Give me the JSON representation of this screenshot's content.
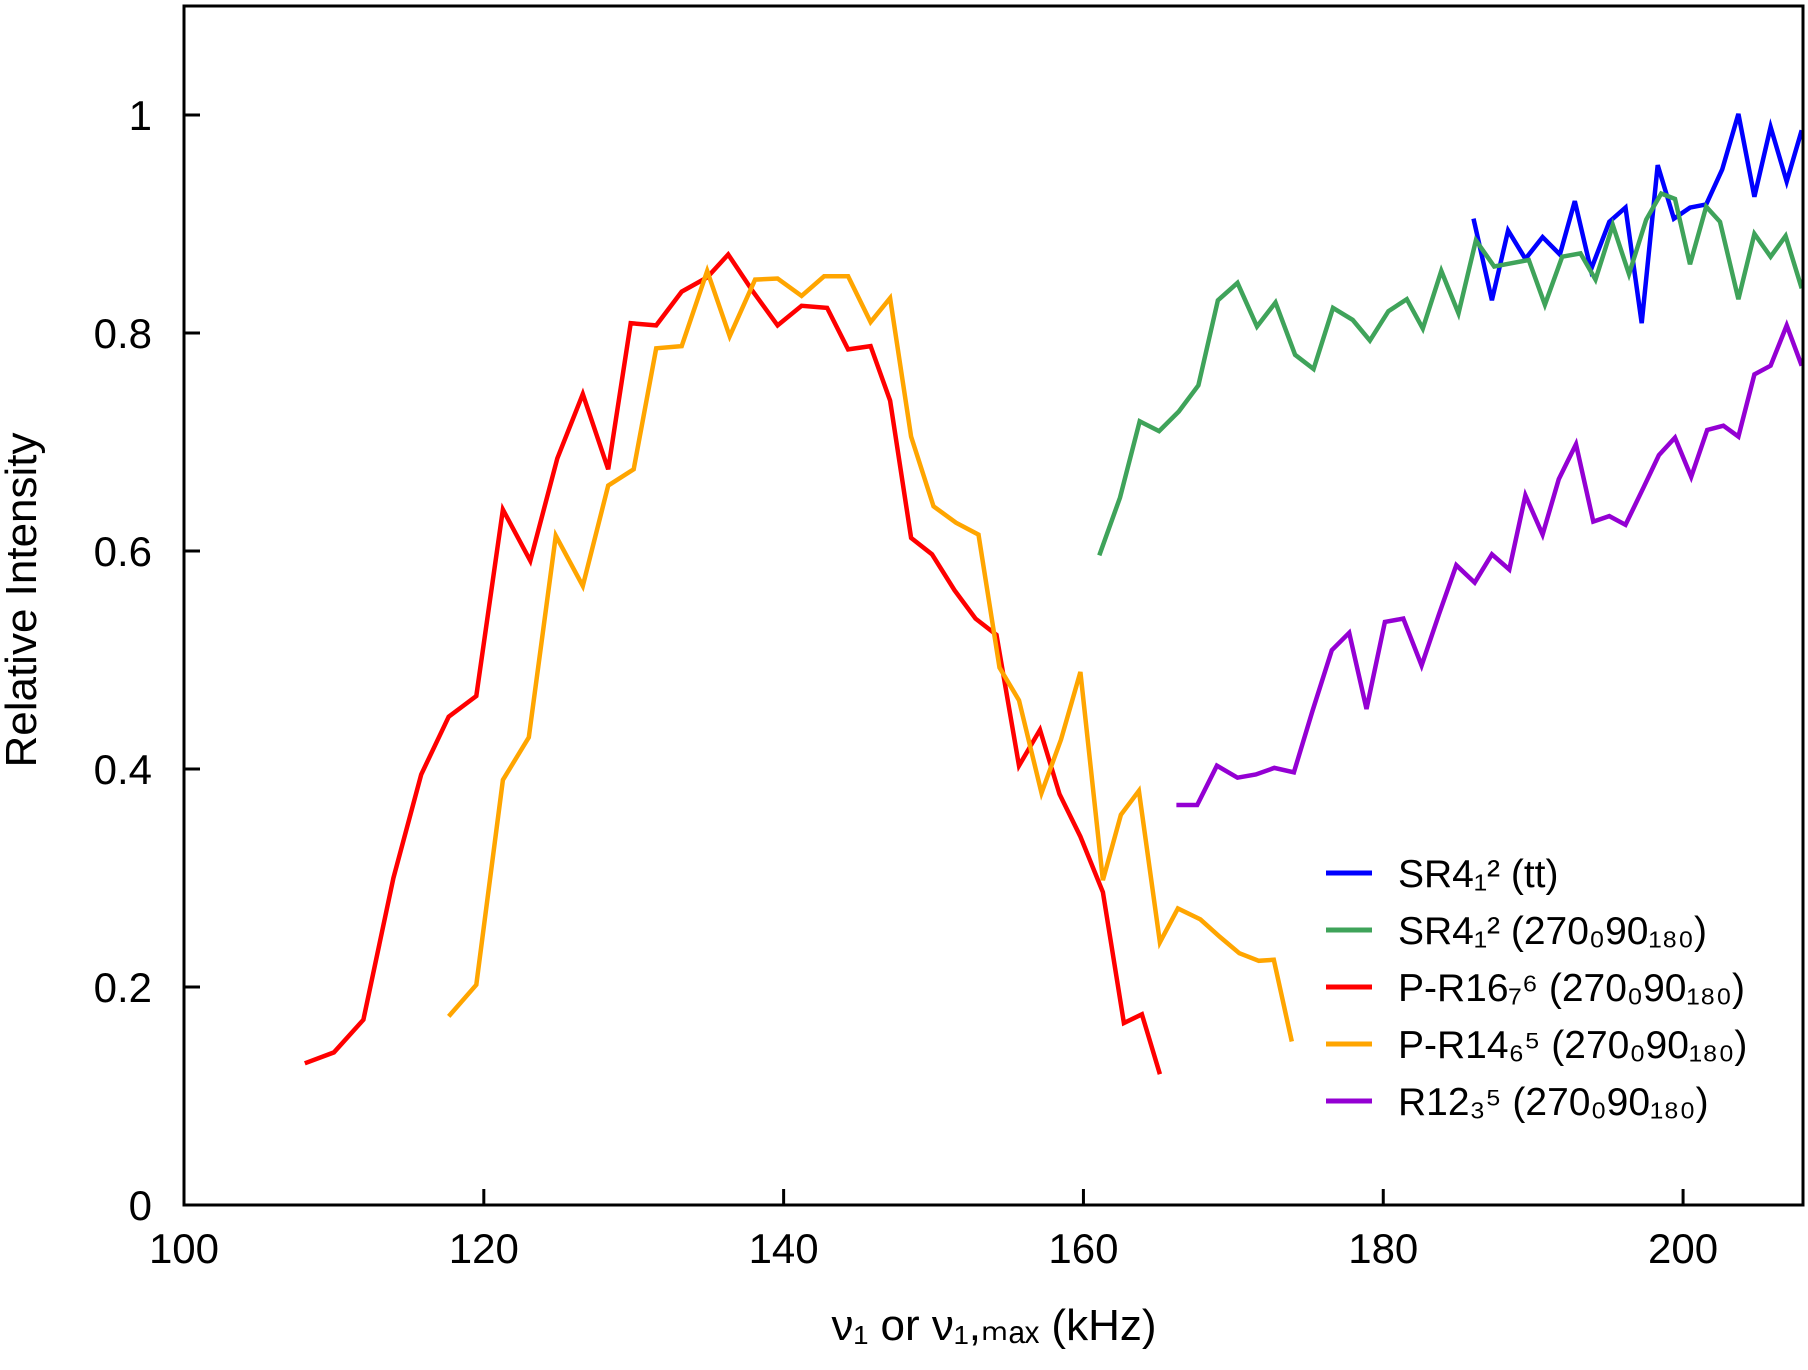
{
  "chart_data": {
    "type": "line",
    "xlabel": "ν₁ or ν₁,ₘₐₓ (kHz)",
    "ylabel": "Relative Intensity",
    "xlim": [
      100,
      208
    ],
    "ylim": [
      0,
      1.1
    ],
    "xticks": [
      100,
      120,
      140,
      160,
      180,
      200
    ],
    "yticks": [
      0,
      0.2,
      0.4,
      0.6,
      0.8,
      1
    ],
    "grid": false,
    "legend_position": "lower right",
    "series": [
      {
        "name": "SR4₁² (tt)",
        "color": "#0000ff",
        "x": [
          186.02,
          187.25,
          188.33,
          189.48,
          190.63,
          191.78,
          192.78,
          193.85,
          195.08,
          196.16,
          197.24,
          198.31,
          199.39,
          200.46,
          201.54,
          202.61,
          203.69,
          204.76,
          205.84,
          206.91,
          207.91
        ],
        "values": [
          0.905,
          0.83,
          0.894,
          0.868,
          0.888,
          0.872,
          0.921,
          0.858,
          0.902,
          0.915,
          0.809,
          0.954,
          0.905,
          0.915,
          0.918,
          0.95,
          1.001,
          0.925,
          0.989,
          0.939,
          0.986
        ]
      },
      {
        "name": "SR4₁² (270₀90₁₈₀)",
        "color": "#3fa35a",
        "x": [
          161.06,
          162.44,
          163.75,
          165.05,
          166.36,
          167.67,
          168.97,
          170.28,
          171.58,
          172.81,
          174.12,
          175.35,
          176.65,
          177.96,
          179.11,
          180.34,
          181.57,
          182.64,
          183.87,
          185.02,
          186.18,
          187.4,
          188.56,
          189.71,
          190.78,
          191.94,
          193.16,
          194.16,
          195.31,
          196.39,
          197.54,
          198.54,
          199.46,
          200.46,
          201.54,
          202.46,
          203.69,
          204.76,
          205.84,
          206.84,
          207.91
        ],
        "values": [
          0.596,
          0.649,
          0.719,
          0.71,
          0.728,
          0.752,
          0.83,
          0.846,
          0.806,
          0.828,
          0.78,
          0.767,
          0.823,
          0.812,
          0.793,
          0.82,
          0.831,
          0.804,
          0.857,
          0.818,
          0.885,
          0.861,
          0.864,
          0.867,
          0.826,
          0.87,
          0.873,
          0.849,
          0.899,
          0.854,
          0.904,
          0.928,
          0.923,
          0.863,
          0.916,
          0.902,
          0.831,
          0.891,
          0.87,
          0.889,
          0.841
        ]
      },
      {
        "name": "P-R16₇⁶ (270₀90₁₈₀)",
        "color": "#ff0000",
        "x": [
          108.06,
          110.0,
          111.97,
          113.97,
          115.82,
          117.66,
          119.5,
          121.27,
          123.1,
          124.9,
          126.6,
          128.3,
          129.8,
          131.5,
          133.2,
          134.9,
          136.3,
          137.96,
          139.6,
          141.2,
          142.9,
          144.3,
          145.8,
          147.1,
          148.5,
          149.9,
          151.4,
          152.8,
          154.2,
          155.7,
          157.1,
          158.4,
          159.8,
          161.3,
          162.7,
          163.9,
          165.1
        ],
        "values": [
          0.13,
          0.14,
          0.17,
          0.3,
          0.395,
          0.448,
          0.467,
          0.638,
          0.591,
          0.685,
          0.744,
          0.675,
          0.809,
          0.807,
          0.838,
          0.851,
          0.872,
          0.838,
          0.807,
          0.825,
          0.823,
          0.785,
          0.788,
          0.738,
          0.612,
          0.597,
          0.564,
          0.538,
          0.523,
          0.403,
          0.436,
          0.377,
          0.338,
          0.287,
          0.167,
          0.175,
          0.12
        ]
      },
      {
        "name": "P-R14₆⁵ (270₀90₁₈₀)",
        "color": "#ffa500",
        "x": [
          117.66,
          119.5,
          121.27,
          123.0,
          124.8,
          126.6,
          128.3,
          130.0,
          131.5,
          133.2,
          134.9,
          136.4,
          138.1,
          139.6,
          141.2,
          142.7,
          144.3,
          145.8,
          147.1,
          148.5,
          150.0,
          151.5,
          153.0,
          154.4,
          155.7,
          157.2,
          158.5,
          159.8,
          161.3,
          162.5,
          163.7,
          165.1,
          166.3,
          167.8,
          169.1,
          170.4,
          171.7,
          172.7,
          173.9
        ],
        "values": [
          0.173,
          0.202,
          0.39,
          0.429,
          0.614,
          0.568,
          0.66,
          0.675,
          0.786,
          0.788,
          0.857,
          0.797,
          0.849,
          0.85,
          0.834,
          0.852,
          0.852,
          0.81,
          0.832,
          0.705,
          0.641,
          0.626,
          0.615,
          0.493,
          0.463,
          0.378,
          0.427,
          0.489,
          0.298,
          0.358,
          0.38,
          0.241,
          0.272,
          0.262,
          0.246,
          0.231,
          0.224,
          0.225,
          0.15
        ]
      },
      {
        "name": "R12₃⁵ (270₀90₁₈₀)",
        "color": "#9400d3",
        "x": [
          166.2,
          167.59,
          168.9,
          170.28,
          171.5,
          172.73,
          174.04,
          175.27,
          176.57,
          177.73,
          178.88,
          180.11,
          181.34,
          182.56,
          183.72,
          184.87,
          186.1,
          187.25,
          188.41,
          189.48,
          190.63,
          191.71,
          192.86,
          194.01,
          195.08,
          196.16,
          197.39,
          198.39,
          199.46,
          200.54,
          201.61,
          202.69,
          203.69,
          204.76,
          205.84,
          206.91,
          207.91
        ],
        "values": [
          0.367,
          0.367,
          0.403,
          0.392,
          0.395,
          0.401,
          0.397,
          0.453,
          0.509,
          0.525,
          0.455,
          0.535,
          0.538,
          0.495,
          0.542,
          0.587,
          0.571,
          0.597,
          0.583,
          0.651,
          0.615,
          0.666,
          0.698,
          0.627,
          0.632,
          0.624,
          0.659,
          0.688,
          0.704,
          0.668,
          0.711,
          0.715,
          0.705,
          0.762,
          0.77,
          0.807,
          0.77
        ]
      }
    ]
  }
}
